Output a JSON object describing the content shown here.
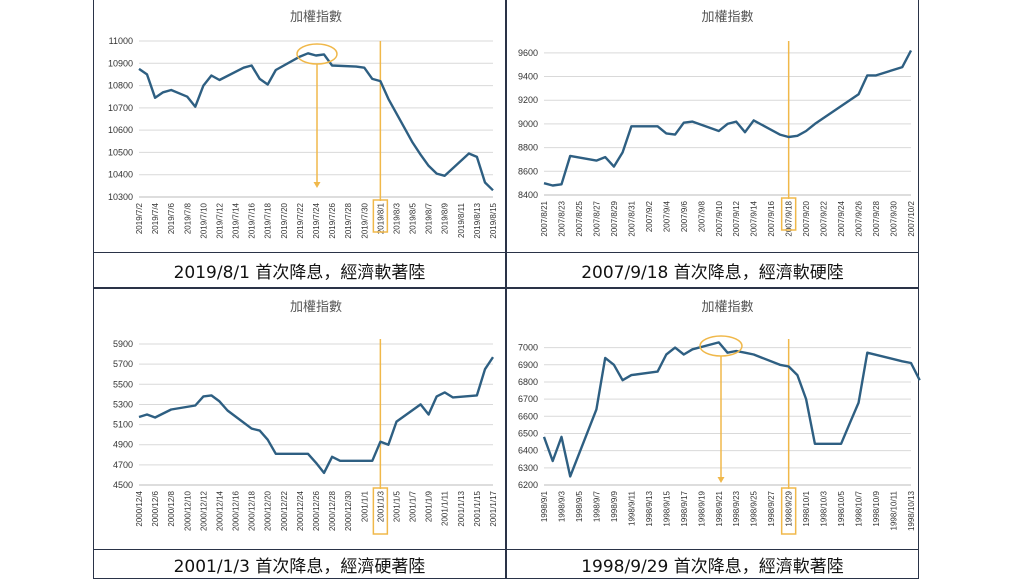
{
  "chart_data": [
    {
      "type": "line",
      "title": "加權指數",
      "caption": "2019/8/1 首次降息，經濟軟著陸",
      "x_ticks": [
        "2019/7/2",
        "2019/7/4",
        "2019/7/6",
        "2019/7/8",
        "2019/7/10",
        "2019/7/12",
        "2019/7/14",
        "2019/7/16",
        "2019/7/18",
        "2019/7/20",
        "2019/7/22",
        "2019/7/24",
        "2019/7/26",
        "2019/7/28",
        "2019/7/30",
        "2019/8/1",
        "2019/8/3",
        "2019/8/5",
        "2019/8/7",
        "2019/8/9",
        "2019/8/11",
        "2019/8/13",
        "2019/8/15"
      ],
      "y_ticks": [
        10300,
        10400,
        10500,
        10600,
        10700,
        10800,
        10900,
        11000
      ],
      "ylim": [
        10300,
        11000
      ],
      "x": [
        "2019/7/2",
        "2019/7/3",
        "2019/7/4",
        "2019/7/5",
        "2019/7/6",
        "2019/7/8",
        "2019/7/9",
        "2019/7/10",
        "2019/7/11",
        "2019/7/12",
        "2019/7/15",
        "2019/7/16",
        "2019/7/17",
        "2019/7/18",
        "2019/7/19",
        "2019/7/22",
        "2019/7/23",
        "2019/7/24",
        "2019/7/25",
        "2019/7/26",
        "2019/7/29",
        "2019/7/30",
        "2019/7/31",
        "2019/8/1",
        "2019/8/2",
        "2019/8/5",
        "2019/8/6",
        "2019/8/7",
        "2019/8/8",
        "2019/8/9",
        "2019/8/12",
        "2019/8/13",
        "2019/8/14",
        "2019/8/15"
      ],
      "values": [
        10875,
        10850,
        10745,
        10770,
        10780,
        10750,
        10705,
        10800,
        10845,
        10825,
        10880,
        10890,
        10830,
        10805,
        10870,
        10930,
        10945,
        10935,
        10940,
        10890,
        10885,
        10880,
        10830,
        10820,
        10740,
        10545,
        10490,
        10440,
        10405,
        10395,
        10495,
        10480,
        10365,
        10330
      ],
      "highlight_x": "2019/8/1"
    },
    {
      "type": "line",
      "title": "加權指數",
      "caption": "2007/9/18 首次降息，經濟軟硬陸",
      "x_ticks": [
        "2007/8/21",
        "2007/8/23",
        "2007/8/25",
        "2007/8/27",
        "2007/8/29",
        "2007/8/31",
        "2007/9/2",
        "2007/9/4",
        "2007/9/6",
        "2007/9/8",
        "2007/9/10",
        "2007/9/12",
        "2007/9/14",
        "2007/9/16",
        "2007/9/18",
        "2007/9/20",
        "2007/9/22",
        "2007/9/24",
        "2007/9/26",
        "2007/9/28",
        "2007/9/30",
        "2007/10/2"
      ],
      "y_ticks": [
        8400,
        8600,
        8800,
        9000,
        9200,
        9400,
        9600
      ],
      "ylim": [
        8400,
        9700
      ],
      "x": [
        "2007/8/21",
        "2007/8/22",
        "2007/8/23",
        "2007/8/24",
        "2007/8/27",
        "2007/8/28",
        "2007/8/29",
        "2007/8/30",
        "2007/8/31",
        "2007/9/3",
        "2007/9/4",
        "2007/9/5",
        "2007/9/6",
        "2007/9/7",
        "2007/9/10",
        "2007/9/11",
        "2007/9/12",
        "2007/9/13",
        "2007/9/14",
        "2007/9/17",
        "2007/9/18",
        "2007/9/19",
        "2007/9/20",
        "2007/9/21",
        "2007/9/26",
        "2007/9/27",
        "2007/9/28",
        "2007/10/1",
        "2007/10/2"
      ],
      "values": [
        8500,
        8480,
        8490,
        8730,
        8690,
        8720,
        8640,
        8760,
        8980,
        8980,
        8920,
        8910,
        9010,
        9020,
        8940,
        9000,
        9020,
        8930,
        9030,
        8910,
        8890,
        8900,
        8940,
        9000,
        9250,
        9410,
        9410,
        9480,
        9620
      ],
      "highlight_x": "2007/9/18"
    },
    {
      "type": "line",
      "title": "加權指數",
      "caption": "2001/1/3 首次降息，經濟硬著陸",
      "x_ticks": [
        "2000/12/4",
        "2000/12/6",
        "2000/12/8",
        "2000/12/10",
        "2000/12/12",
        "2000/12/14",
        "2000/12/16",
        "2000/12/18",
        "2000/12/20",
        "2000/12/22",
        "2000/12/24",
        "2000/12/26",
        "2000/12/28",
        "2000/12/30",
        "2001/1/1",
        "2001/1/3",
        "2001/1/5",
        "2001/1/7",
        "2001/1/9",
        "2001/1/11",
        "2001/1/13",
        "2001/1/15",
        "2001/1/17"
      ],
      "y_ticks": [
        4500,
        4700,
        4900,
        5100,
        5300,
        5500,
        5700,
        5900
      ],
      "ylim": [
        4500,
        5950
      ],
      "x": [
        "2000/12/4",
        "2000/12/5",
        "2000/12/6",
        "2000/12/7",
        "2000/12/8",
        "2000/12/11",
        "2000/12/12",
        "2000/12/13",
        "2000/12/14",
        "2000/12/15",
        "2000/12/18",
        "2000/12/19",
        "2000/12/20",
        "2000/12/21",
        "2000/12/22",
        "2000/12/25",
        "2000/12/26",
        "2000/12/27",
        "2000/12/28",
        "2000/12/29",
        "2001/1/2",
        "2001/1/3",
        "2001/1/4",
        "2001/1/5",
        "2001/1/8",
        "2001/1/9",
        "2001/1/10",
        "2001/1/11",
        "2001/1/12",
        "2001/1/15",
        "2001/1/16",
        "2001/1/17"
      ],
      "values": [
        5175,
        5200,
        5170,
        5210,
        5250,
        5290,
        5380,
        5390,
        5330,
        5240,
        5060,
        5040,
        4950,
        4810,
        4810,
        4810,
        4720,
        4620,
        4780,
        4740,
        4740,
        4930,
        4900,
        5130,
        5300,
        5200,
        5380,
        5420,
        5370,
        5390,
        5650,
        5770
      ],
      "highlight_x": "2001/1/3"
    },
    {
      "type": "line",
      "title": "加權指數",
      "caption": "1998/9/29 首次降息，經濟軟著陸",
      "x_ticks": [
        "1998/9/1",
        "1998/9/3",
        "1998/9/5",
        "1998/9/7",
        "1998/9/9",
        "1998/9/11",
        "1998/9/13",
        "1998/9/15",
        "1998/9/17",
        "1998/9/19",
        "1998/9/21",
        "1998/9/23",
        "1998/9/25",
        "1998/9/27",
        "1998/9/29",
        "1998/10/1",
        "1998/10/3",
        "1998/10/5",
        "1998/10/7",
        "1998/10/9",
        "1998/10/11",
        "1998/10/13"
      ],
      "y_ticks": [
        6200,
        6300,
        6400,
        6500,
        6600,
        6700,
        6800,
        6900,
        7000
      ],
      "ylim": [
        6200,
        7050
      ],
      "x": [
        "1998/9/1",
        "1998/9/2",
        "1998/9/3",
        "1998/9/4",
        "1998/9/7",
        "1998/9/8",
        "1998/9/9",
        "1998/9/10",
        "1998/9/11",
        "1998/9/14",
        "1998/9/15",
        "1998/9/16",
        "1998/9/17",
        "1998/9/18",
        "1998/9/21",
        "1998/9/22",
        "1998/9/23",
        "1998/9/24",
        "1998/9/25",
        "1998/9/28",
        "1998/9/29",
        "1998/9/30",
        "1998/10/1",
        "1998/10/2",
        "1998/10/5",
        "1998/10/6",
        "1998/10/7",
        "1998/10/8",
        "1998/10/12",
        "1998/10/13",
        "1998/10/14"
      ],
      "values": [
        6480,
        6340,
        6480,
        6250,
        6640,
        6940,
        6900,
        6810,
        6840,
        6860,
        6960,
        7000,
        6960,
        6990,
        7030,
        6970,
        6980,
        6970,
        6960,
        6900,
        6890,
        6840,
        6700,
        6440,
        6440,
        6560,
        6680,
        6970,
        6920,
        6910,
        6810
      ],
      "highlight_x": "1998/9/29"
    }
  ]
}
